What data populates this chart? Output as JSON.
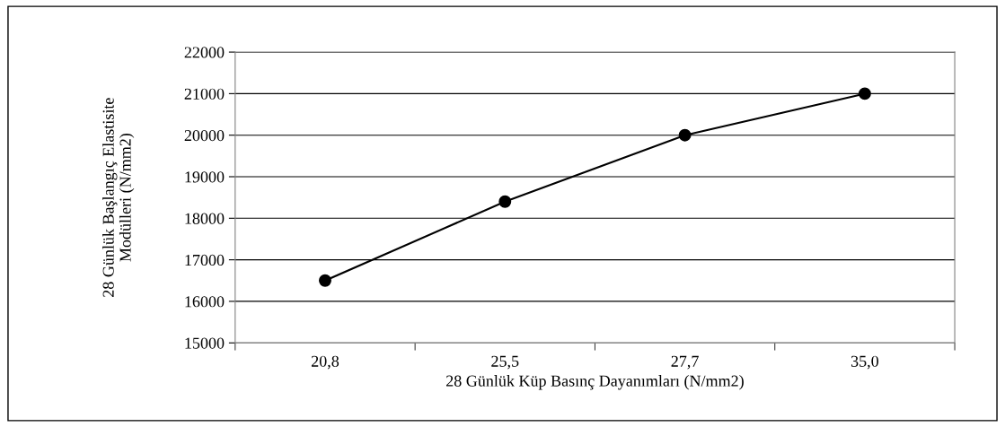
{
  "chart_data": {
    "type": "line",
    "xlabel": "28 Günlük Küp Basınç Dayanımları (N/mm2)",
    "ylabel": "28 Günlük Başlangıç Elastisite\nModülleri (N/mm2)",
    "categories": [
      "20,8",
      "25,5",
      "27,7",
      "35,0"
    ],
    "series": [
      {
        "color": "#000000",
        "values": [
          16500,
          18400,
          20000,
          21000
        ]
      }
    ],
    "ylim": [
      15000,
      22000
    ],
    "yticks": [
      15000,
      16000,
      17000,
      18000,
      19000,
      20000,
      21000,
      22000
    ],
    "grid": "y",
    "marker": "circle",
    "line_style": "solid"
  }
}
